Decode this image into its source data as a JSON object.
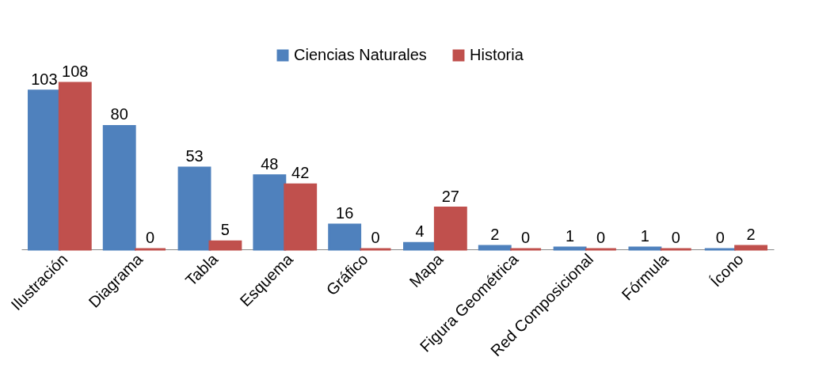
{
  "chart_data": {
    "type": "bar",
    "categories": [
      "Ilustración",
      "Diagrama",
      "Tabla",
      "Esquema",
      "Gráfico",
      "Mapa",
      "Figura Geométrica",
      "Red Composicional",
      "Fórmula",
      "Ícono"
    ],
    "series": [
      {
        "name": "Ciencias Naturales",
        "color": "#4f81bd",
        "values": [
          103,
          80,
          53,
          48,
          16,
          4,
          2,
          1,
          1,
          0
        ]
      },
      {
        "name": "Historia",
        "color": "#c0504d",
        "values": [
          108,
          0,
          5,
          42,
          0,
          27,
          0,
          0,
          0,
          2
        ]
      }
    ],
    "data_labels": true,
    "legend": "top",
    "grid": false
  }
}
